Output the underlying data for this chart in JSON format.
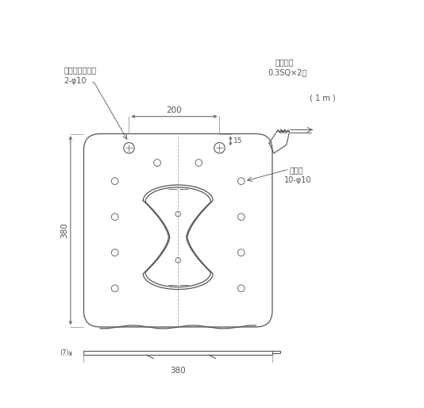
{
  "bg_color": "#ffffff",
  "line_color": "#555555",
  "label_200": "200",
  "label_380_h": "380",
  "label_380_w": "380",
  "label_15": "15",
  "label_7": "(7)",
  "label_fixhole_1": "固定用ハトメ穴",
  "label_fixhole_2": "2-φ10",
  "label_lead_1": "リード線",
  "label_lead_2": "0.3SQ×2芯",
  "label_1m": "( 1 m )",
  "label_vent_1": "通気孔",
  "label_vent_2": "10-φ10"
}
